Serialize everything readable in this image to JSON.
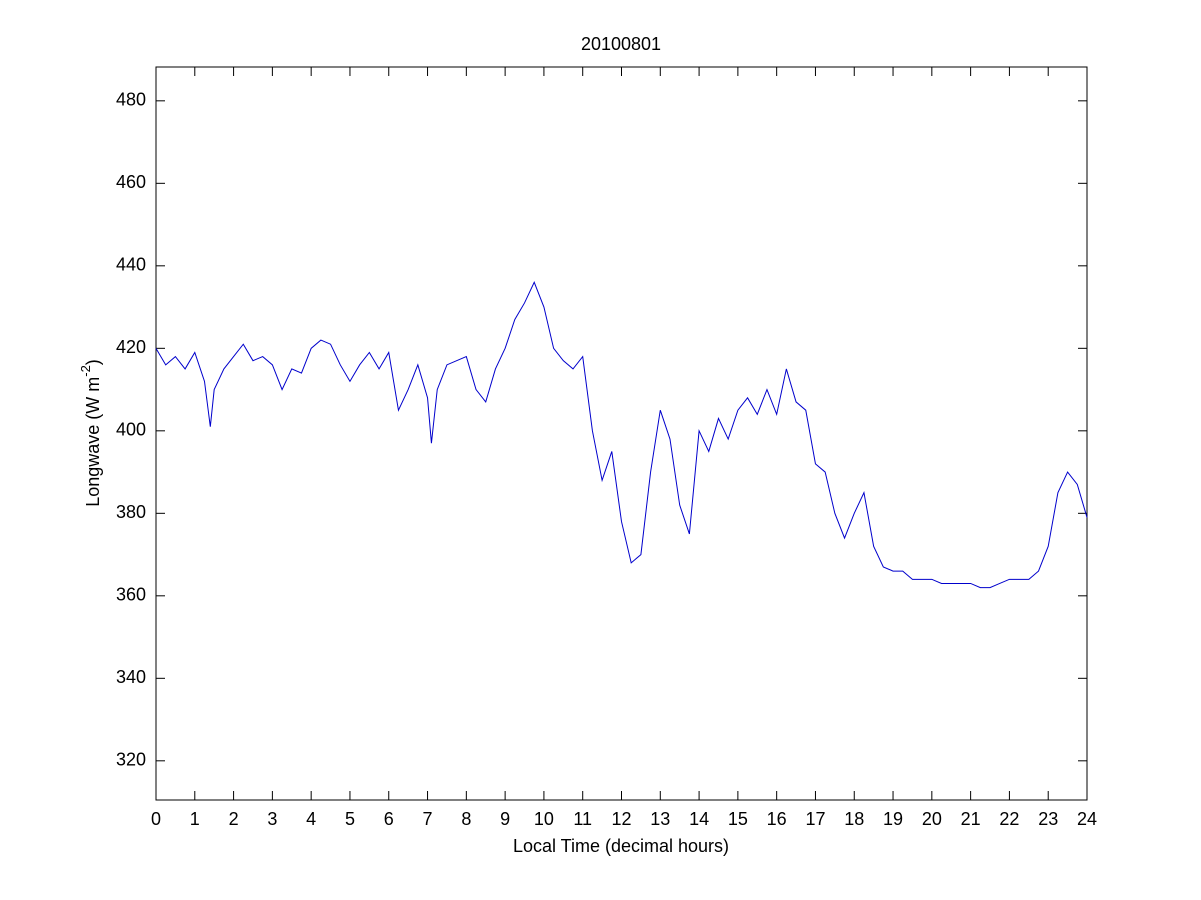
{
  "chart_data": {
    "type": "line",
    "title": "20100801",
    "xlabel": "Local Time (decimal hours)",
    "ylabel": "Longwave (W m",
    "ylabel_sup": "-2",
    "ylabel_end": ")",
    "xlim": [
      0,
      24
    ],
    "ylim": [
      310.5,
      488.2
    ],
    "xticks": [
      0,
      1,
      2,
      3,
      4,
      5,
      6,
      7,
      8,
      9,
      10,
      11,
      12,
      13,
      14,
      15,
      16,
      17,
      18,
      19,
      20,
      21,
      22,
      23,
      24
    ],
    "yticks": [
      320,
      340,
      360,
      380,
      400,
      420,
      440,
      460,
      480
    ],
    "x": [
      0,
      0.25,
      0.5,
      0.75,
      1,
      1.25,
      1.4,
      1.5,
      1.75,
      2,
      2.25,
      2.5,
      2.75,
      3,
      3.25,
      3.5,
      3.75,
      4,
      4.25,
      4.5,
      4.75,
      5,
      5.25,
      5.5,
      5.75,
      6,
      6.25,
      6.5,
      6.75,
      7,
      7.1,
      7.25,
      7.5,
      7.75,
      8,
      8.25,
      8.5,
      8.75,
      9,
      9.25,
      9.5,
      9.75,
      10,
      10.25,
      10.5,
      10.75,
      11,
      11.25,
      11.5,
      11.75,
      12,
      12.25,
      12.5,
      12.75,
      13,
      13.25,
      13.5,
      13.75,
      14,
      14.25,
      14.5,
      14.75,
      15,
      15.25,
      15.5,
      15.75,
      16,
      16.25,
      16.5,
      16.75,
      17,
      17.25,
      17.5,
      17.75,
      18,
      18.25,
      18.5,
      18.75,
      19,
      19.25,
      19.5,
      19.75,
      20,
      20.25,
      20.5,
      20.75,
      21,
      21.25,
      21.5,
      21.75,
      22,
      22.25,
      22.5,
      22.75,
      23,
      23.25,
      23.5,
      23.75,
      24
    ],
    "series": [
      {
        "name": "Longwave",
        "color": "#0000cc",
        "values": [
          420,
          416,
          418,
          415,
          419,
          412,
          401,
          410,
          415,
          418,
          421,
          417,
          418,
          416,
          410,
          415,
          414,
          420,
          422,
          421,
          416,
          412,
          416,
          419,
          415,
          419,
          405,
          410,
          416,
          408,
          397,
          410,
          416,
          417,
          418,
          410,
          407,
          415,
          420,
          427,
          431,
          436,
          430,
          420,
          417,
          415,
          418,
          400,
          388,
          395,
          378,
          368,
          370,
          390,
          405,
          398,
          382,
          375,
          400,
          395,
          403,
          398,
          405,
          408,
          404,
          410,
          404,
          415,
          407,
          405,
          392,
          390,
          380,
          374,
          380,
          385,
          372,
          367,
          366,
          366,
          364,
          364,
          364,
          363,
          363,
          363,
          363,
          362,
          362,
          363,
          364,
          364,
          364,
          366,
          372,
          385,
          390,
          387,
          379
        ]
      }
    ]
  }
}
